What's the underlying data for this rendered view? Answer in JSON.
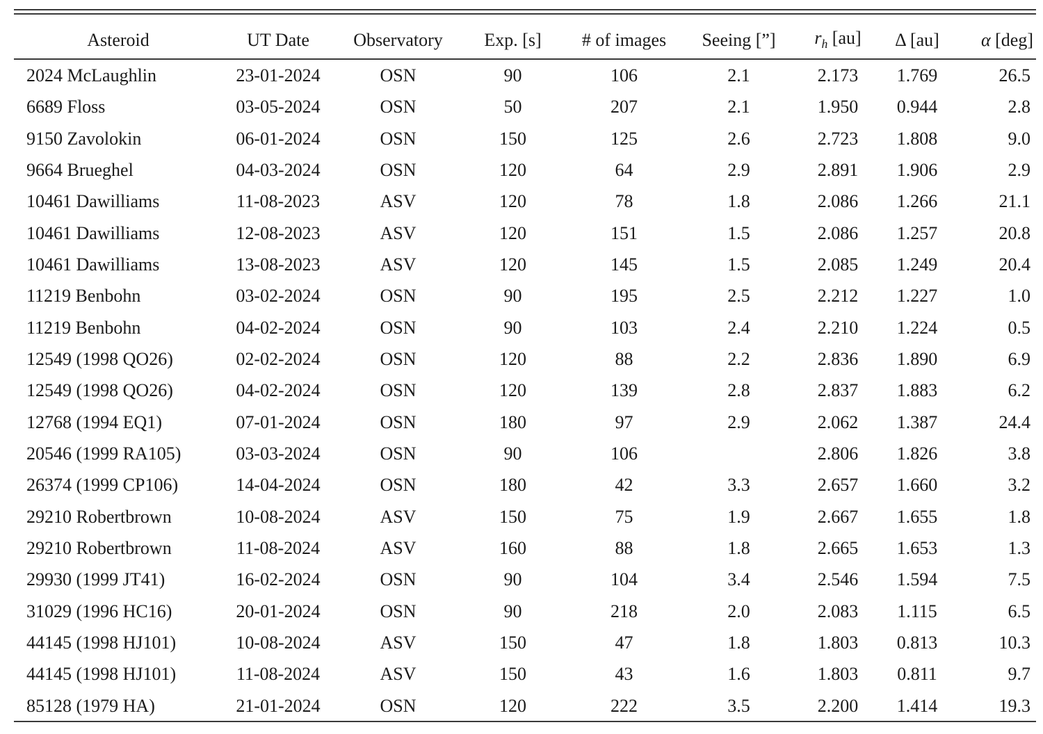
{
  "page": {
    "background": "#ffffff",
    "text_color": "#1b1b1b",
    "rule_color": "#3a3a3a"
  },
  "table": {
    "columns": [
      {
        "key": "asteroid",
        "label": "Asteroid",
        "align": "left"
      },
      {
        "key": "ut-date",
        "label": "UT Date",
        "align": "center"
      },
      {
        "key": "observatory",
        "label": "Observatory",
        "align": "center"
      },
      {
        "key": "exp-s",
        "label": "Exp. [s]",
        "align": "center"
      },
      {
        "key": "num-images",
        "label": "# of images",
        "align": "center"
      },
      {
        "key": "seeing",
        "label": "Seeing [”]",
        "align": "center"
      },
      {
        "key": "rh-au",
        "label": "r_h [au]",
        "align": "center",
        "label_parts": [
          {
            "text": "r",
            "style": "italic"
          },
          {
            "text": "h",
            "style": "sub"
          },
          {
            "text": " [au]",
            "style": "normal"
          }
        ]
      },
      {
        "key": "delta-au",
        "label": "Δ [au]",
        "align": "center"
      },
      {
        "key": "alpha-deg",
        "label": "α [deg]",
        "align": "right",
        "label_parts": [
          {
            "text": "α",
            "style": "italic"
          },
          {
            "text": " [deg]",
            "style": "normal"
          }
        ]
      }
    ],
    "rows": [
      [
        "2024 McLaughlin",
        "23-01-2024",
        "OSN",
        "90",
        "106",
        "2.1",
        "2.173",
        "1.769",
        "26.5"
      ],
      [
        "6689 Floss",
        "03-05-2024",
        "OSN",
        "50",
        "207",
        "2.1",
        "1.950",
        "0.944",
        "2.8"
      ],
      [
        "9150 Zavolokin",
        "06-01-2024",
        "OSN",
        "150",
        "125",
        "2.6",
        "2.723",
        "1.808",
        "9.0"
      ],
      [
        "9664 Brueghel",
        "04-03-2024",
        "OSN",
        "120",
        "64",
        "2.9",
        "2.891",
        "1.906",
        "2.9"
      ],
      [
        "10461 Dawilliams",
        "11-08-2023",
        "ASV",
        "120",
        "78",
        "1.8",
        "2.086",
        "1.266",
        "21.1"
      ],
      [
        "10461 Dawilliams",
        "12-08-2023",
        "ASV",
        "120",
        "151",
        "1.5",
        "2.086",
        "1.257",
        "20.8"
      ],
      [
        "10461 Dawilliams",
        "13-08-2023",
        "ASV",
        "120",
        "145",
        "1.5",
        "2.085",
        "1.249",
        "20.4"
      ],
      [
        "11219 Benbohn",
        "03-02-2024",
        "OSN",
        "90",
        "195",
        "2.5",
        "2.212",
        "1.227",
        "1.0"
      ],
      [
        "11219 Benbohn",
        "04-02-2024",
        "OSN",
        "90",
        "103",
        "2.4",
        "2.210",
        "1.224",
        "0.5"
      ],
      [
        "12549 (1998 QO26)",
        "02-02-2024",
        "OSN",
        "120",
        "88",
        "2.2",
        "2.836",
        "1.890",
        "6.9"
      ],
      [
        "12549 (1998 QO26)",
        "04-02-2024",
        "OSN",
        "120",
        "139",
        "2.8",
        "2.837",
        "1.883",
        "6.2"
      ],
      [
        "12768 (1994 EQ1)",
        "07-01-2024",
        "OSN",
        "180",
        "97",
        "2.9",
        "2.062",
        "1.387",
        "24.4"
      ],
      [
        "20546 (1999 RA105)",
        "03-03-2024",
        "OSN",
        "90",
        "106",
        "",
        "2.806",
        "1.826",
        "3.8"
      ],
      [
        "26374 (1999 CP106)",
        "14-04-2024",
        "OSN",
        "180",
        "42",
        "3.3",
        "2.657",
        "1.660",
        "3.2"
      ],
      [
        "29210 Robertbrown",
        "10-08-2024",
        "ASV",
        "150",
        "75",
        "1.9",
        "2.667",
        "1.655",
        "1.8"
      ],
      [
        "29210 Robertbrown",
        "11-08-2024",
        "ASV",
        "160",
        "88",
        "1.8",
        "2.665",
        "1.653",
        "1.3"
      ],
      [
        "29930 (1999 JT41)",
        "16-02-2024",
        "OSN",
        "90",
        "104",
        "3.4",
        "2.546",
        "1.594",
        "7.5"
      ],
      [
        "31029 (1996 HC16)",
        "20-01-2024",
        "OSN",
        "90",
        "218",
        "2.0",
        "2.083",
        "1.115",
        "6.5"
      ],
      [
        "44145 (1998 HJ101)",
        "10-08-2024",
        "ASV",
        "150",
        "47",
        "1.8",
        "1.803",
        "0.813",
        "10.3"
      ],
      [
        "44145 (1998 HJ101)",
        "11-08-2024",
        "ASV",
        "150",
        "43",
        "1.6",
        "1.803",
        "0.811",
        "9.7"
      ],
      [
        "85128 (1979 HA)",
        "21-01-2024",
        "OSN",
        "120",
        "222",
        "3.5",
        "2.200",
        "1.414",
        "19.3"
      ]
    ]
  }
}
